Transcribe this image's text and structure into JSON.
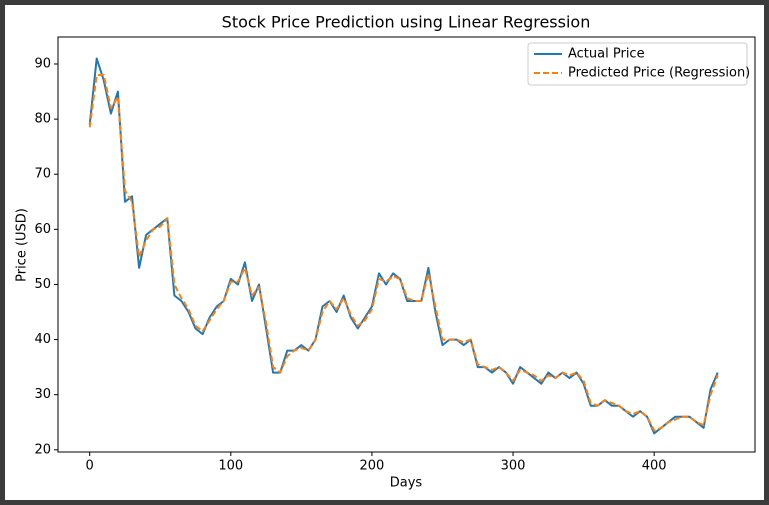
{
  "chart_data": {
    "type": "line",
    "title": "Stock Price Prediction using Linear Regression",
    "x_label": "Days",
    "y_label": "Price (USD)",
    "x": [
      0,
      5,
      10,
      15,
      20,
      25,
      30,
      35,
      40,
      45,
      50,
      55,
      60,
      65,
      70,
      75,
      80,
      85,
      90,
      95,
      100,
      105,
      110,
      115,
      120,
      125,
      130,
      135,
      140,
      145,
      150,
      155,
      160,
      165,
      170,
      175,
      180,
      185,
      190,
      195,
      200,
      205,
      210,
      215,
      220,
      225,
      230,
      235,
      240,
      245,
      250,
      255,
      260,
      265,
      270,
      275,
      280,
      285,
      290,
      295,
      300,
      305,
      310,
      315,
      320,
      325,
      330,
      335,
      340,
      345,
      350,
      355,
      360,
      365,
      370,
      375,
      380,
      385,
      390,
      395,
      400,
      405,
      410,
      415,
      420,
      425,
      430,
      435,
      440,
      445
    ],
    "series": [
      {
        "name": "Actual Price",
        "color": "#1f77b4",
        "dash": false,
        "values": [
          79,
          91,
          87,
          81,
          85,
          65,
          66,
          53,
          59,
          60,
          61,
          62,
          48,
          47,
          45,
          42,
          41,
          44,
          46,
          47,
          51,
          50,
          54,
          47,
          50,
          42,
          34,
          34,
          38,
          38,
          39,
          38,
          40,
          46,
          47,
          45,
          48,
          44,
          42,
          44,
          46,
          52,
          50,
          52,
          51,
          47,
          47,
          47,
          53,
          45,
          39,
          40,
          40,
          39,
          40,
          35,
          35,
          34,
          35,
          34,
          32,
          35,
          34,
          33,
          32,
          34,
          33,
          34,
          33,
          34,
          32,
          28,
          28,
          29,
          28,
          28,
          27,
          26,
          27,
          26,
          23,
          24,
          25,
          26,
          26,
          26,
          25,
          24,
          31,
          34
        ]
      },
      {
        "name": "Predicted Price (Regression)",
        "color": "#ff7f0e",
        "dash": true,
        "values": [
          78.5,
          88,
          88,
          82,
          84,
          67,
          65,
          55,
          58,
          60,
          60.5,
          62,
          50,
          47.5,
          45.5,
          42.5,
          41.5,
          43.5,
          45.5,
          47,
          50.5,
          50.5,
          53,
          48,
          49.5,
          43,
          35,
          34,
          37,
          38,
          38.5,
          38,
          40,
          45,
          47,
          45.5,
          47.5,
          44.5,
          42.5,
          43.5,
          45.5,
          51,
          50.5,
          51.5,
          51,
          47.5,
          47,
          47,
          52,
          46,
          40,
          40,
          40,
          39.5,
          40,
          35.5,
          35,
          34.5,
          35,
          34,
          32.5,
          34.5,
          34,
          33.5,
          32.5,
          33.5,
          33,
          34,
          33.5,
          34,
          32.5,
          28.5,
          28,
          29,
          28.5,
          28,
          27,
          26.5,
          27,
          26,
          23.5,
          24,
          25,
          25.5,
          26,
          26,
          25,
          24.5,
          30,
          33.5
        ]
      }
    ],
    "xlim": [
      -22.45,
      471.45
    ],
    "xticks": [
      0,
      100,
      200,
      300,
      400
    ],
    "ylim": [
      19.6,
      94.9
    ],
    "yticks": [
      20,
      30,
      40,
      50,
      60,
      70,
      80,
      90
    ],
    "grid": false,
    "legend": "upper right"
  }
}
